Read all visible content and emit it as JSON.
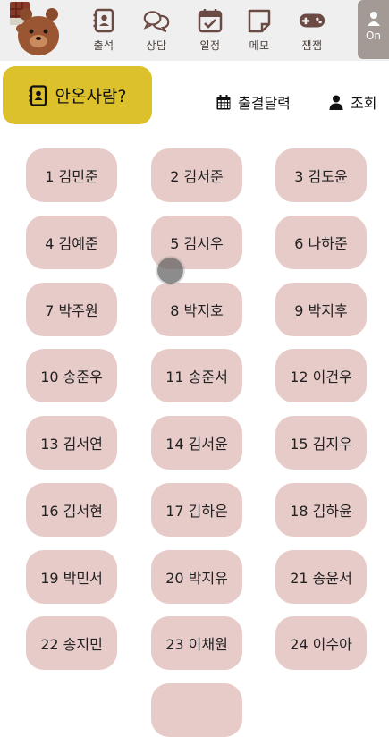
{
  "nav": {
    "items": [
      {
        "label": "출석",
        "icon": "contact-card-icon"
      },
      {
        "label": "상담",
        "icon": "chat-bubbles-icon"
      },
      {
        "label": "일정",
        "icon": "calendar-check-icon"
      },
      {
        "label": "메모",
        "icon": "sticky-note-icon"
      },
      {
        "label": "잼잼",
        "icon": "gamepad-icon"
      }
    ],
    "on_label": "On"
  },
  "actions": {
    "absent_label": "안온사람?",
    "calendar_label": "출결달력",
    "lookup_label": "조회"
  },
  "students": [
    "1 김민준",
    "2 김서준",
    "3 김도윤",
    "4 김예준",
    "5 김시우",
    "6 나하준",
    "7 박주원",
    "8 박지호",
    "9 박지후",
    "10 송준우",
    "11 송준서",
    "12 이건우",
    "13 김서연",
    "14 김서윤",
    "15 김지우",
    "16 김서현",
    "17 김하은",
    "18 김하윤",
    "19 박민서",
    "20 박지유",
    "21 송윤서",
    "22 송지민",
    "23 이채원",
    "24 이수아",
    ""
  ],
  "colors": {
    "topbar": "#efefef",
    "accent_yellow": "#ddc12c",
    "student_tile": "#e7cbc9",
    "icon_brown": "#6b4a43",
    "on_button": "#a39a96"
  }
}
